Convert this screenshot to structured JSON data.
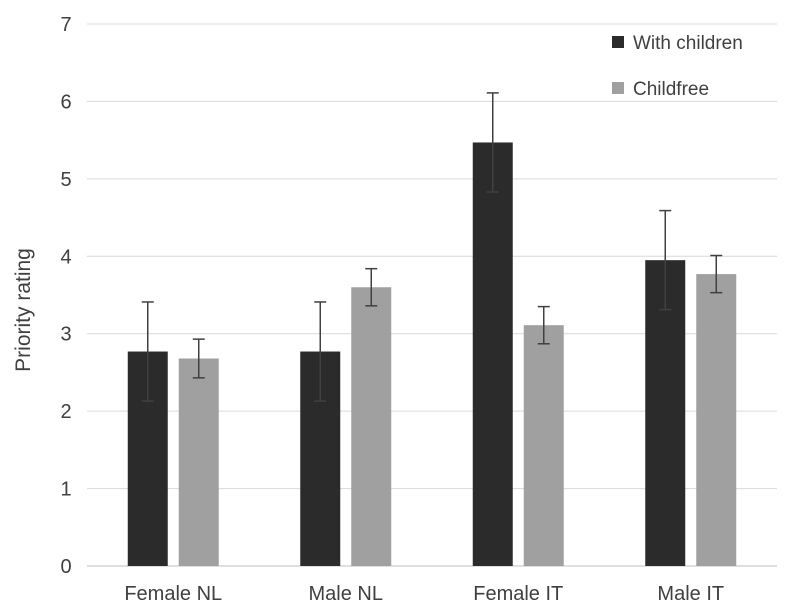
{
  "chart_data": {
    "type": "bar",
    "title": "",
    "xlabel": "",
    "ylabel": "Priority rating",
    "ylim": [
      0,
      7
    ],
    "yticks": [
      "0",
      "1",
      "2",
      "3",
      "4",
      "5",
      "6",
      "7"
    ],
    "grid": true,
    "legend_position": "top-right",
    "categories": [
      "Female NL",
      "Male NL",
      "Female IT",
      "Male IT"
    ],
    "series": [
      {
        "name": "With children",
        "color": "#2b2b2b",
        "values": [
          2.77,
          2.77,
          5.47,
          3.95
        ],
        "error_low": [
          2.13,
          2.13,
          4.83,
          3.31
        ],
        "error_high": [
          3.41,
          3.41,
          6.11,
          4.59
        ]
      },
      {
        "name": "Childfree",
        "color": "#a0a0a0",
        "values": [
          2.68,
          3.6,
          3.11,
          3.77
        ],
        "error_low": [
          2.43,
          3.36,
          2.87,
          3.53
        ],
        "error_high": [
          2.93,
          3.84,
          3.35,
          4.01
        ]
      }
    ]
  }
}
